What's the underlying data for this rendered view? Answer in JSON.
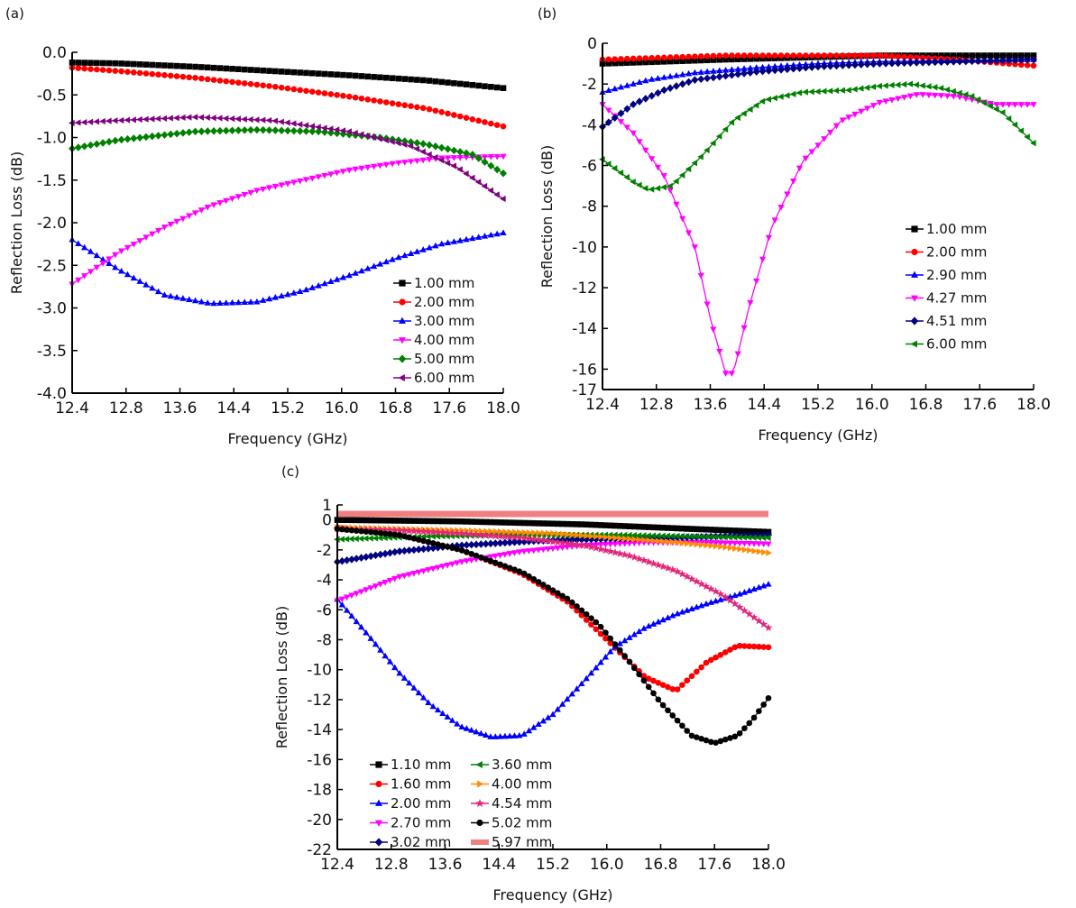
{
  "chart_data": [
    {
      "panel_label": "(a)",
      "type": "line",
      "xlabel": "Frequency (GHz)",
      "ylabel": "Reflection Loss (dB)",
      "xlim": [
        12.4,
        18.0
      ],
      "ylim": [
        -4.0,
        0.0
      ],
      "xticks": [
        "12.4",
        "12.8",
        "13.6",
        "14.4",
        "15.2",
        "16.0",
        "16.8",
        "17.6",
        "18.0"
      ],
      "yticks": [
        "0.0",
        "-0.5",
        "-1.0",
        "-1.5",
        "-2.0",
        "-2.5",
        "-3.0",
        "-3.5",
        "-4.0"
      ],
      "legend_position": "bottom-right",
      "series": [
        {
          "name": "1.00 mm",
          "color": "#000000",
          "marker": "square",
          "x": [
            12.4,
            13.0,
            14.0,
            15.0,
            16.0,
            17.0,
            18.0
          ],
          "y": [
            -0.12,
            -0.13,
            -0.17,
            -0.22,
            -0.27,
            -0.33,
            -0.42
          ]
        },
        {
          "name": "2.00 mm",
          "color": "#ff0000",
          "marker": "circle",
          "x": [
            12.4,
            13.0,
            14.0,
            15.0,
            16.0,
            17.0,
            18.0
          ],
          "y": [
            -0.18,
            -0.22,
            -0.3,
            -0.4,
            -0.52,
            -0.66,
            -0.87
          ]
        },
        {
          "name": "3.00 mm",
          "color": "#0000ff",
          "marker": "triangle-up",
          "x": [
            12.4,
            13.0,
            13.6,
            14.2,
            14.8,
            15.4,
            16.0,
            16.6,
            17.2,
            18.0
          ],
          "y": [
            -2.2,
            -2.55,
            -2.85,
            -2.95,
            -2.93,
            -2.8,
            -2.62,
            -2.42,
            -2.25,
            -2.12
          ]
        },
        {
          "name": "4.00 mm",
          "color": "#ff00ff",
          "marker": "triangle-down",
          "x": [
            12.4,
            13.0,
            13.6,
            14.2,
            14.8,
            15.4,
            16.0,
            16.6,
            17.2,
            18.0
          ],
          "y": [
            -2.72,
            -2.35,
            -2.05,
            -1.8,
            -1.62,
            -1.5,
            -1.38,
            -1.3,
            -1.24,
            -1.22
          ]
        },
        {
          "name": "5.00 mm",
          "color": "#008000",
          "marker": "diamond",
          "x": [
            12.4,
            13.0,
            14.0,
            14.8,
            15.6,
            16.4,
            17.0,
            17.6,
            18.0
          ],
          "y": [
            -1.13,
            -1.03,
            -0.93,
            -0.91,
            -0.93,
            -1.0,
            -1.08,
            -1.2,
            -1.42
          ]
        },
        {
          "name": "6.00 mm",
          "color": "#800080",
          "marker": "triangle-left",
          "x": [
            12.4,
            13.0,
            14.0,
            15.0,
            16.0,
            16.8,
            17.4,
            18.0
          ],
          "y": [
            -0.83,
            -0.8,
            -0.76,
            -0.8,
            -0.93,
            -1.1,
            -1.35,
            -1.72
          ]
        }
      ]
    },
    {
      "panel_label": "(b)",
      "type": "line",
      "xlabel": "Frequency (GHz)",
      "ylabel": "Reflection Loss (dB)",
      "xlim": [
        12.4,
        18.0
      ],
      "ylim": [
        -17,
        0
      ],
      "xticks": [
        "12.4",
        "12.8",
        "13.6",
        "14.4",
        "15.2",
        "16.0",
        "16.8",
        "17.6",
        "18.0"
      ],
      "yticks": [
        "0",
        "-2",
        "-4",
        "-6",
        "-8",
        "-10",
        "-12",
        "-14",
        "-16",
        "-17"
      ],
      "legend_position": "right",
      "series": [
        {
          "name": "1.00 mm",
          "color": "#000000",
          "marker": "square",
          "x": [
            12.4,
            14.0,
            16.0,
            18.0
          ],
          "y": [
            -1.0,
            -0.8,
            -0.6,
            -0.6
          ]
        },
        {
          "name": "2.00 mm",
          "color": "#ff0000",
          "marker": "circle",
          "x": [
            12.4,
            14.0,
            16.0,
            17.0,
            18.0
          ],
          "y": [
            -0.8,
            -0.6,
            -0.6,
            -0.8,
            -1.1
          ]
        },
        {
          "name": "2.90 mm",
          "color": "#0000ff",
          "marker": "triangle-up",
          "x": [
            12.4,
            13.0,
            13.6,
            14.4,
            15.2,
            16.0,
            17.0,
            18.0
          ],
          "y": [
            -2.4,
            -1.8,
            -1.45,
            -1.2,
            -1.0,
            -0.9,
            -0.85,
            -0.8
          ]
        },
        {
          "name": "4.27 mm",
          "color": "#ff00ff",
          "marker": "triangle-down",
          "x": [
            12.4,
            12.8,
            13.2,
            13.6,
            13.8,
            14.0,
            14.1,
            14.3,
            14.6,
            15.0,
            15.5,
            16.0,
            16.5,
            17.0,
            17.5,
            18.0
          ],
          "y": [
            -3.0,
            -4.4,
            -6.5,
            -10.0,
            -13.5,
            -16.2,
            -16.2,
            -13.0,
            -9.0,
            -5.8,
            -3.8,
            -2.9,
            -2.5,
            -2.6,
            -3.0,
            -3.0
          ]
        },
        {
          "name": "4.51 mm",
          "color": "#000080",
          "marker": "diamond",
          "x": [
            12.4,
            12.8,
            13.2,
            13.6,
            14.4,
            15.2,
            16.0,
            17.0,
            18.0
          ],
          "y": [
            -4.1,
            -3.0,
            -2.3,
            -1.8,
            -1.4,
            -1.15,
            -1.0,
            -0.9,
            -0.8
          ]
        },
        {
          "name": "6.00 mm",
          "color": "#008000",
          "marker": "triangle-left",
          "x": [
            12.4,
            12.8,
            13.0,
            13.3,
            13.7,
            14.1,
            14.5,
            15.0,
            15.6,
            16.0,
            16.4,
            16.8,
            17.2,
            17.6,
            18.0
          ],
          "y": [
            -5.7,
            -6.8,
            -7.2,
            -7.0,
            -5.5,
            -3.8,
            -2.8,
            -2.4,
            -2.3,
            -2.1,
            -2.0,
            -2.2,
            -2.6,
            -3.4,
            -4.9
          ]
        }
      ]
    },
    {
      "panel_label": "(c)",
      "type": "line",
      "xlabel": "Frequency (GHz)",
      "ylabel": "Reflection Loss (dB)",
      "xlim": [
        12.4,
        18.0
      ],
      "ylim": [
        -22,
        1
      ],
      "xticks": [
        "12.4",
        "12.8",
        "13.6",
        "14.4",
        "15.2",
        "16.0",
        "16.8",
        "17.6",
        "18.0"
      ],
      "yticks": [
        "1",
        "0",
        "-2",
        "-4",
        "-6",
        "-8",
        "-10",
        "-12",
        "-14",
        "-16",
        "-18",
        "-20",
        "-22"
      ],
      "legend_position": "bottom-left",
      "series": [
        {
          "name": "1.10 mm",
          "color": "#000000",
          "marker": "square",
          "x": [
            12.4,
            14.0,
            15.6,
            17.0,
            18.0
          ],
          "y": [
            0.0,
            -0.1,
            -0.3,
            -0.6,
            -0.8
          ]
        },
        {
          "name": "1.60 mm",
          "color": "#ff0000",
          "marker": "circle",
          "x": [
            12.4,
            13.2,
            14.0,
            14.8,
            15.4,
            16.0,
            16.4,
            16.8,
            17.2,
            17.6,
            18.0
          ],
          "y": [
            -0.5,
            -1.0,
            -2.0,
            -3.6,
            -5.5,
            -8.5,
            -10.5,
            -11.4,
            -9.5,
            -8.4,
            -8.5
          ]
        },
        {
          "name": "2.00 mm",
          "color": "#0000ff",
          "marker": "triangle-up",
          "x": [
            12.4,
            12.8,
            13.2,
            13.6,
            14.0,
            14.4,
            14.8,
            15.2,
            15.6,
            16.0,
            16.4,
            16.8,
            17.2,
            17.6,
            18.0
          ],
          "y": [
            -5.3,
            -7.7,
            -10.2,
            -12.3,
            -13.8,
            -14.5,
            -14.4,
            -13.0,
            -10.8,
            -8.5,
            -7.2,
            -6.3,
            -5.6,
            -5.0,
            -4.3
          ]
        },
        {
          "name": "2.70 mm",
          "color": "#ff00ff",
          "marker": "triangle-down",
          "x": [
            12.4,
            13.2,
            14.0,
            14.8,
            15.6,
            16.4,
            17.2,
            18.0
          ],
          "y": [
            -5.4,
            -3.8,
            -2.8,
            -2.1,
            -1.7,
            -1.5,
            -1.5,
            -1.6
          ]
        },
        {
          "name": "3.02 mm",
          "color": "#000080",
          "marker": "diamond",
          "x": [
            12.4,
            13.2,
            14.0,
            15.0,
            16.0,
            17.0,
            18.0
          ],
          "y": [
            -2.8,
            -2.1,
            -1.7,
            -1.4,
            -1.25,
            -1.15,
            -1.0
          ]
        },
        {
          "name": "3.60 mm",
          "color": "#008000",
          "marker": "triangle-left",
          "x": [
            12.4,
            13.6,
            14.8,
            16.0,
            17.0,
            18.0
          ],
          "y": [
            -1.3,
            -1.1,
            -1.0,
            -1.0,
            -1.1,
            -1.2
          ]
        },
        {
          "name": "4.00 mm",
          "color": "#ff8c00",
          "marker": "triangle-right",
          "x": [
            12.4,
            14.0,
            15.2,
            16.0,
            16.8,
            17.4,
            18.0
          ],
          "y": [
            -0.5,
            -0.7,
            -0.9,
            -1.2,
            -1.5,
            -1.8,
            -2.2
          ]
        },
        {
          "name": "4.54 mm",
          "color": "#e0287a",
          "marker": "star",
          "x": [
            12.4,
            13.2,
            14.0,
            14.8,
            15.6,
            16.2,
            16.8,
            17.4,
            18.0
          ],
          "y": [
            -0.6,
            -0.7,
            -0.9,
            -1.2,
            -1.7,
            -2.4,
            -3.4,
            -5.0,
            -7.2
          ]
        },
        {
          "name": "5.02 mm",
          "color": "#000000",
          "marker": "circle",
          "x": [
            12.4,
            13.2,
            14.0,
            14.8,
            15.4,
            15.8,
            16.2,
            16.6,
            17.0,
            17.3,
            17.6,
            17.8,
            18.0
          ],
          "y": [
            -0.6,
            -1.0,
            -2.0,
            -3.5,
            -5.3,
            -7.0,
            -9.5,
            -12.2,
            -14.4,
            -14.9,
            -14.4,
            -13.3,
            -11.9
          ]
        },
        {
          "name": "5.97 mm",
          "color": "#f08080",
          "marker": "square",
          "x": [
            12.4,
            18.0
          ],
          "y": [
            0.4,
            0.4
          ]
        }
      ]
    }
  ]
}
